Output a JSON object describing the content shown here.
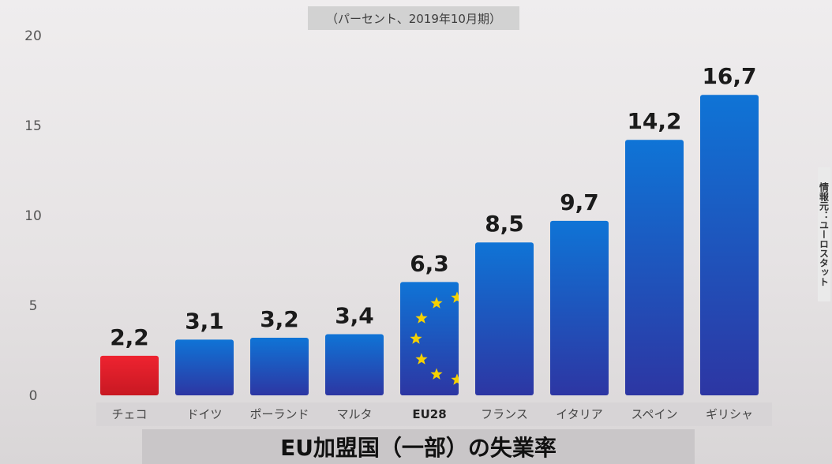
{
  "chart_data": {
    "type": "bar",
    "title": "EU加盟国（一部）の失業率",
    "subtitle": "（パーセント、2019年10月期）",
    "source": "情報元：ユーロスタット",
    "categories": [
      "チェコ",
      "ドイツ",
      "ポーランド",
      "マルタ",
      "EU28",
      "フランス",
      "イタリア",
      "スペイン",
      "ギリシャ"
    ],
    "values": [
      2.2,
      3.1,
      3.2,
      3.4,
      6.3,
      8.5,
      9.7,
      14.2,
      16.7
    ],
    "value_labels": [
      "2,2",
      "3,1",
      "3,2",
      "3,4",
      "6,3",
      "8,5",
      "9,7",
      "14,2",
      "16,7"
    ],
    "yticks": [
      0,
      5,
      10,
      15,
      20
    ],
    "ylim": [
      0,
      20
    ],
    "grid": false,
    "colors": {
      "highlight": "#e0202a",
      "eu_stars": "#f5d100",
      "bar_top": "#0f6fd0",
      "bar_bottom": "#2b3aa6"
    },
    "highlight_category": "チェコ",
    "eu_category": "EU28"
  }
}
